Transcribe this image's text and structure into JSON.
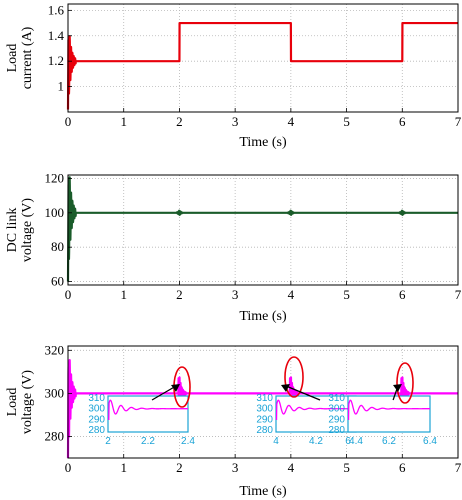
{
  "colors": {
    "panel1": "#e8000b",
    "panel2": "#1a5c2a",
    "panel3": "#ff00ff",
    "inset": "#1aa3d6",
    "grid": "#b5b5b5"
  },
  "chart_data": [
    {
      "type": "line",
      "xlabel": "Time (s)",
      "ylabel_lines": [
        "Load",
        "current (A)"
      ],
      "xlim": [
        0,
        7
      ],
      "ylim": [
        0.8,
        1.65
      ],
      "xticks": [
        0,
        1,
        2,
        3,
        4,
        5,
        6,
        7
      ],
      "yticks": [
        1,
        1.2,
        1.4,
        1.6
      ],
      "yticklabels": [
        "1",
        "1.2",
        "1.4",
        "1.6"
      ],
      "grid": true,
      "series": [
        {
          "steps": [
            [
              0.05,
              2.0,
              1.2
            ],
            [
              2.0,
              4.0,
              1.5
            ],
            [
              4.0,
              6.0,
              1.2
            ],
            [
              6.0,
              7.0,
              1.5
            ]
          ],
          "transients": [
            {
              "t": 0.0,
              "kind": "startup",
              "low": 0.82,
              "high": 1.55
            },
            {
              "t": 2.0,
              "kind": "step"
            },
            {
              "t": 4.0,
              "kind": "step"
            },
            {
              "t": 6.0,
              "kind": "step"
            }
          ]
        }
      ]
    },
    {
      "type": "line",
      "xlabel": "Time (s)",
      "ylabel_lines": [
        "DC link",
        "voltage (V)"
      ],
      "xlim": [
        0,
        7
      ],
      "ylim": [
        58,
        122
      ],
      "xticks": [
        0,
        1,
        2,
        3,
        4,
        5,
        6,
        7
      ],
      "yticks": [
        60,
        80,
        100,
        120
      ],
      "yticklabels": [
        "60",
        "80",
        "100",
        "120"
      ],
      "grid": true,
      "series": [
        {
          "steps": [
            [
              0.0,
              7.0,
              100
            ]
          ],
          "transients": [
            {
              "t": 0.0,
              "kind": "startup",
              "low": 60,
              "high": 114
            },
            {
              "t": 2.0,
              "kind": "blip",
              "amp": 1.5
            },
            {
              "t": 4.0,
              "kind": "blip",
              "amp": 1.5
            },
            {
              "t": 6.0,
              "kind": "blip",
              "amp": 1.5
            }
          ]
        }
      ]
    },
    {
      "type": "line",
      "xlabel": "Time (s)",
      "ylabel_lines": [
        "Load",
        "voltage (V)"
      ],
      "xlim": [
        0,
        7
      ],
      "ylim": [
        270,
        322
      ],
      "xticks": [
        0,
        1,
        2,
        3,
        4,
        5,
        6,
        7
      ],
      "yticks": [
        280,
        300,
        320
      ],
      "yticklabels": [
        "280",
        "300",
        "320"
      ],
      "grid": true,
      "series": [
        {
          "steps": [
            [
              0.0,
              7.0,
              300
            ]
          ],
          "transients": [
            {
              "t": 0.0,
              "kind": "startup",
              "low": 270,
              "high": 322
            },
            {
              "t": 2.0,
              "kind": "burst",
              "amp": 8
            },
            {
              "t": 4.0,
              "kind": "burst",
              "amp": 8
            },
            {
              "t": 6.0,
              "kind": "burst",
              "amp": 8
            }
          ]
        }
      ],
      "insets": [
        {
          "xlim": [
            2,
            2.4
          ],
          "xticks": [
            "2",
            "2.2",
            "2.4"
          ],
          "yticks": [
            "310",
            "300",
            "290",
            "280"
          ],
          "ylim": [
            278,
            312
          ],
          "event_t": 2.0
        },
        {
          "xlim": [
            4,
            4.4
          ],
          "xticks": [
            "4",
            "4.2",
            "4.4"
          ],
          "yticks": [
            "310",
            "300",
            "290",
            "280"
          ],
          "ylim": [
            278,
            312
          ],
          "event_t": 4.0
        },
        {
          "xlim": [
            6,
            6.4
          ],
          "xticks": [
            "6",
            "6.2",
            "6.4"
          ],
          "yticks": [
            "310",
            "300",
            "290",
            "280"
          ],
          "ylim": [
            278,
            312
          ],
          "event_t": 6.0
        }
      ]
    }
  ]
}
